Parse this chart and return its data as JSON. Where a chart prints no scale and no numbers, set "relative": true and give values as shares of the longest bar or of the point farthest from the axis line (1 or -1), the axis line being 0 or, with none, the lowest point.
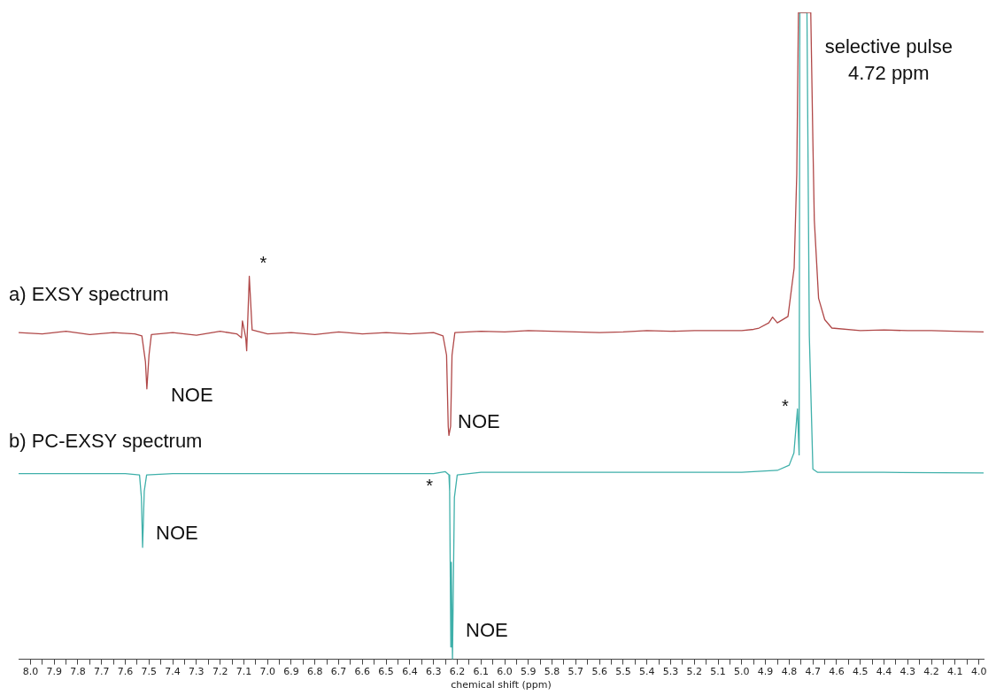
{
  "chart_data": {
    "type": "line",
    "xlabel": "chemical shift (ppm)",
    "relative": true,
    "marker": "none",
    "line_style": "solid",
    "xlim": [
      8.05,
      3.98
    ],
    "xticks": [
      {
        "value": 8,
        "label": "8.0"
      },
      7.9,
      7.8,
      7.7,
      7.6,
      7.5,
      7.4,
      7.3,
      7.2,
      7.1,
      {
        "value": 7,
        "label": "7.0"
      },
      6.9,
      6.8,
      6.7,
      6.6,
      6.5,
      6.4,
      6.3,
      6.2,
      6.1,
      {
        "value": 6,
        "label": "6.0"
      },
      5.9,
      5.8,
      5.7,
      5.6,
      5.5,
      5.4,
      5.3,
      5.2,
      5.1,
      {
        "value": 5,
        "label": "5.0"
      },
      4.9,
      4.8,
      4.7,
      4.6,
      4.5,
      4.4,
      4.3,
      4.2,
      4.1,
      {
        "value": 4,
        "label": "4.0"
      },
      {
        "value": 7.95,
        "label": null
      },
      {
        "value": 7.85,
        "label": null
      },
      {
        "value": 7.75,
        "label": null
      },
      {
        "value": 7.65,
        "label": null
      },
      {
        "value": 7.55,
        "label": null
      },
      {
        "value": 7.45,
        "label": null
      },
      {
        "value": 7.35,
        "label": null
      },
      {
        "value": 7.25,
        "label": null
      },
      {
        "value": 7.15,
        "label": null
      },
      {
        "value": 7.05,
        "label": null
      },
      {
        "value": 6.95,
        "label": null
      },
      {
        "value": 6.85,
        "label": null
      },
      {
        "value": 6.75,
        "label": null
      },
      {
        "value": 6.65,
        "label": null
      },
      {
        "value": 6.55,
        "label": null
      },
      {
        "value": 6.45,
        "label": null
      },
      {
        "value": 6.35,
        "label": null
      },
      {
        "value": 6.25,
        "label": null
      },
      {
        "value": 6.15,
        "label": null
      },
      {
        "value": 6.05,
        "label": null
      },
      {
        "value": 5.95,
        "label": null
      },
      {
        "value": 5.85,
        "label": null
      },
      {
        "value": 5.75,
        "label": null
      },
      {
        "value": 5.65,
        "label": null
      },
      {
        "value": 5.55,
        "label": null
      },
      {
        "value": 5.45,
        "label": null
      },
      {
        "value": 5.35,
        "label": null
      },
      {
        "value": 5.25,
        "label": null
      },
      {
        "value": 5.15,
        "label": null
      },
      {
        "value": 5.05,
        "label": null
      },
      {
        "value": 4.95,
        "label": null
      },
      {
        "value": 4.85,
        "label": null
      },
      {
        "value": 4.75,
        "label": null
      },
      {
        "value": 4.65,
        "label": null
      },
      {
        "value": 4.55,
        "label": null
      },
      {
        "value": 4.45,
        "label": null
      },
      {
        "value": 4.35,
        "label": null
      },
      {
        "value": 4.25,
        "label": null
      },
      {
        "value": 4.15,
        "label": null
      },
      {
        "value": 4.05,
        "label": null
      }
    ],
    "series": [
      {
        "name": "a) EXSY spectrum",
        "color": "#b04848",
        "x": [
          8.05,
          7.95,
          7.85,
          7.75,
          7.65,
          7.56,
          7.53,
          7.515,
          7.509,
          7.5,
          7.49,
          7.4,
          7.3,
          7.2,
          7.13,
          7.11,
          7.106,
          7.092,
          7.088,
          7.077,
          7.065,
          7.0,
          6.9,
          6.8,
          6.7,
          6.6,
          6.5,
          6.4,
          6.3,
          6.26,
          6.245,
          6.238,
          6.235,
          6.228,
          6.222,
          6.21,
          6.1,
          6.0,
          5.9,
          5.8,
          5.7,
          5.6,
          5.5,
          5.4,
          5.3,
          5.2,
          5.1,
          5.0,
          4.95,
          4.927,
          4.886,
          4.87,
          4.85,
          4.805,
          4.779,
          4.768,
          4.761,
          4.709,
          4.7,
          4.694,
          4.676,
          4.65,
          4.62,
          4.5,
          4.4,
          4.3,
          4.2,
          4.1,
          3.98
        ],
        "values": [
          0.505,
          0.503,
          0.507,
          0.502,
          0.505,
          0.503,
          0.5,
          0.46,
          0.418,
          0.47,
          0.502,
          0.505,
          0.501,
          0.507,
          0.503,
          0.497,
          0.523,
          0.497,
          0.477,
          0.592,
          0.509,
          0.503,
          0.505,
          0.502,
          0.506,
          0.503,
          0.505,
          0.503,
          0.505,
          0.5,
          0.47,
          0.36,
          0.346,
          0.36,
          0.47,
          0.505,
          0.507,
          0.506,
          0.508,
          0.507,
          0.506,
          0.505,
          0.506,
          0.508,
          0.507,
          0.508,
          0.508,
          0.508,
          0.51,
          0.512,
          0.52,
          0.529,
          0.52,
          0.53,
          0.605,
          0.75,
          1,
          1,
          0.8,
          0.679,
          0.558,
          0.525,
          0.512,
          0.508,
          0.509,
          0.508,
          0.508,
          0.507,
          0.506
        ]
      },
      {
        "name": "b) PC-EXSY spectrum",
        "color": "#3fb0aa",
        "x": [
          8.05,
          7.6,
          7.54,
          7.532,
          7.527,
          7.52,
          7.51,
          7.4,
          7.0,
          6.6,
          6.3,
          6.25,
          6.235,
          6.232,
          6.227,
          6.225,
          6.22,
          6.212,
          6.2,
          6.1,
          5.5,
          5.0,
          4.85,
          4.8,
          4.78,
          4.765,
          4.758,
          4.755,
          4.725,
          4.715,
          4.7,
          4.68,
          4.4,
          3.98
        ],
        "values": [
          0.287,
          0.287,
          0.285,
          0.25,
          0.173,
          0.26,
          0.285,
          0.287,
          0.287,
          0.287,
          0.287,
          0.29,
          0.285,
          0.26,
          0.019,
          0.15,
          0,
          0.25,
          0.285,
          0.289,
          0.289,
          0.289,
          0.292,
          0.3,
          0.319,
          0.387,
          0.316,
          1,
          1,
          0.5,
          0.294,
          0.289,
          0.289,
          0.288
        ]
      }
    ],
    "annotations": [
      {
        "text": "*",
        "x": 7.077,
        "y": 0.592
      },
      {
        "text": "NOE",
        "x": 7.509,
        "y": 0.418
      },
      {
        "text": "NOE",
        "x": 6.235,
        "y": 0.346
      },
      {
        "text": "NOE",
        "x": 7.527,
        "y": 0.173
      },
      {
        "text": "*",
        "x": 6.235,
        "y": 0.287
      },
      {
        "text": "NOE",
        "x": 6.22,
        "y": 0
      },
      {
        "text": "*",
        "x": 4.765,
        "y": 0.387
      },
      {
        "text": "selective pulse\n4.72 ppm",
        "x": 4.72,
        "y": 1
      }
    ]
  }
}
